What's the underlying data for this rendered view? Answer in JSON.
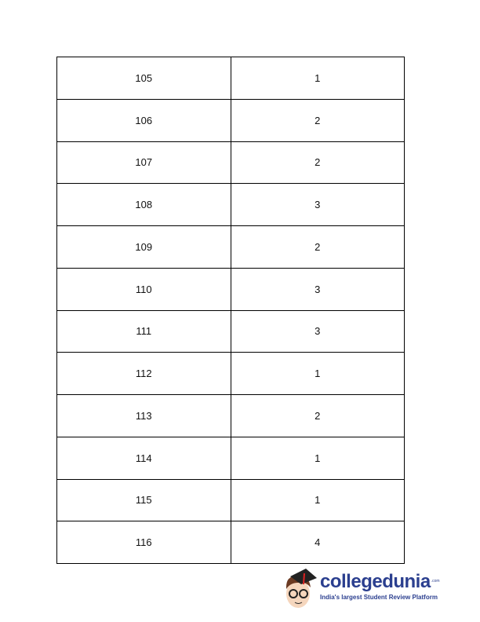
{
  "table": {
    "rows": [
      [
        "105",
        "1"
      ],
      [
        "106",
        "2"
      ],
      [
        "107",
        "2"
      ],
      [
        "108",
        "3"
      ],
      [
        "109",
        "2"
      ],
      [
        "110",
        "3"
      ],
      [
        "111",
        "3"
      ],
      [
        "112",
        "1"
      ],
      [
        "113",
        "2"
      ],
      [
        "114",
        "1"
      ],
      [
        "115",
        "1"
      ],
      [
        "116",
        "4"
      ]
    ]
  },
  "logo": {
    "brand": "collegedunia",
    "suffix": ".com",
    "tagline": "India's largest Student Review Platform"
  }
}
